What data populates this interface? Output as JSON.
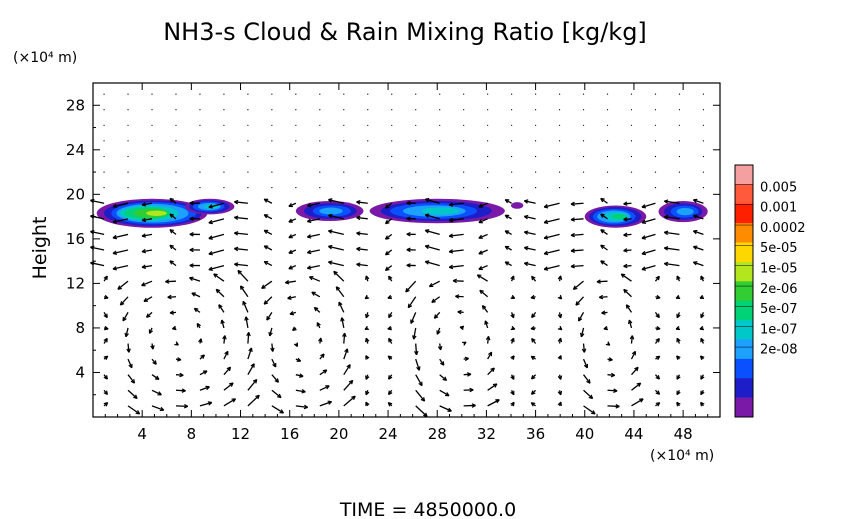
{
  "chart_data": {
    "type": "heatmap",
    "title": "NH3-s Cloud & Rain Mixing Ratio [kg/kg]",
    "ylabel": "Height",
    "y_unit_label": "(×10⁴ m)",
    "x_unit_label": "(×10⁴ m)",
    "x_ticks": [
      4,
      8,
      12,
      16,
      20,
      24,
      28,
      32,
      36,
      40,
      44,
      48
    ],
    "y_ticks": [
      4,
      8,
      12,
      16,
      20,
      24,
      28
    ],
    "xlim": [
      0,
      51
    ],
    "ylim": [
      0,
      30
    ],
    "time_label": "TIME  =  4850000.0",
    "colorbar": {
      "labels": [
        "0.005",
        "0.001",
        "0.0002",
        "5e-05",
        "1e-05",
        "2e-06",
        "5e-07",
        "1e-07",
        "2e-08"
      ],
      "colors": [
        "#f5a0a0",
        "#ff5a3c",
        "#ff2000",
        "#ff8c00",
        "#ffd700",
        "#b4e61e",
        "#32cd32",
        "#00d278",
        "#00c8c8",
        "#1ea0ff",
        "#0a50ff",
        "#1e1ec8",
        "#7a19a8"
      ]
    },
    "cloud_patches": [
      {
        "x": [
          0.3,
          9.3
        ],
        "y": [
          17.0,
          19.6
        ],
        "peak": 5
      },
      {
        "x": [
          7.5,
          11.5
        ],
        "y": [
          18.2,
          19.6
        ],
        "peak": 8
      },
      {
        "x": [
          16.5,
          22.0
        ],
        "y": [
          17.6,
          19.4
        ],
        "peak": 9
      },
      {
        "x": [
          22.5,
          33.5
        ],
        "y": [
          17.4,
          19.6
        ],
        "peak": 8
      },
      {
        "x": [
          34.0,
          35.0
        ],
        "y": [
          18.7,
          19.3
        ],
        "peak": 12
      },
      {
        "x": [
          40.0,
          45.0
        ],
        "y": [
          17.0,
          19.0
        ],
        "peak": 7
      },
      {
        "x": [
          46.0,
          50.0
        ],
        "y": [
          17.5,
          19.4
        ],
        "peak": 9
      }
    ]
  }
}
